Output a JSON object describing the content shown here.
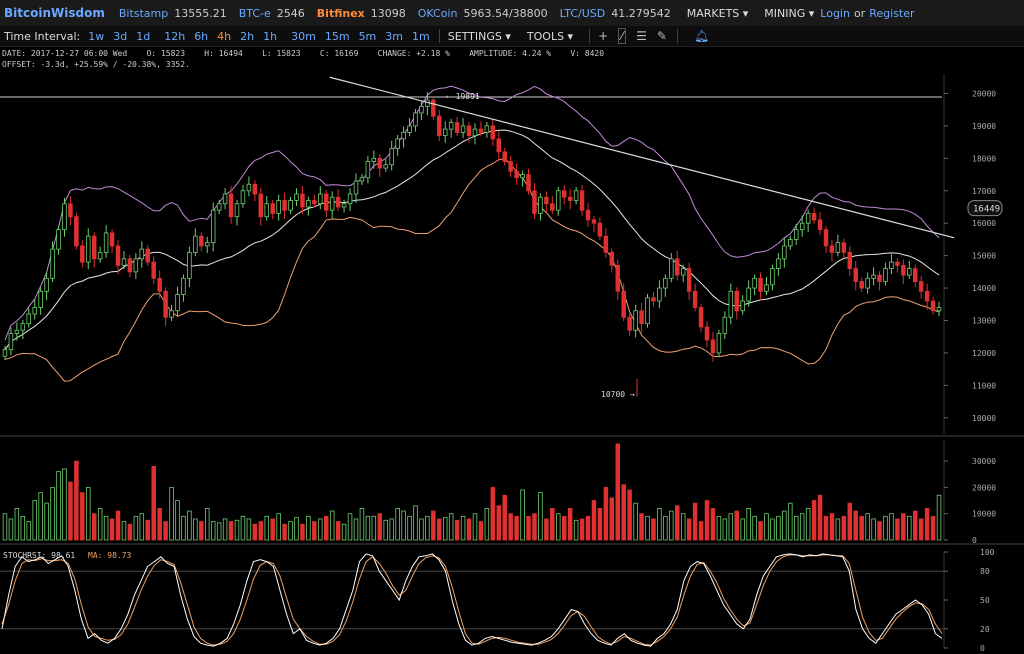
{
  "topbar": {
    "logo": "BitcoinWisdom",
    "tickers": [
      {
        "name": "Bitstamp",
        "value": "13555.21",
        "highlight": false
      },
      {
        "name": "BTC-e",
        "value": "2546",
        "highlight": false
      },
      {
        "name": "Bitfinex",
        "value": "13098",
        "highlight": true
      },
      {
        "name": "OKCoin",
        "value": "5963.54/38800",
        "highlight": false
      },
      {
        "name": "LTC/USD",
        "value": "41.279542",
        "highlight": false
      }
    ],
    "markets_label": "MARKETS ▾",
    "mining_label": "MINING ▾",
    "login_label": "Login",
    "or_label": "or",
    "register_label": "Register"
  },
  "toolbar": {
    "time_interval_label": "Time Interval:",
    "intervals": [
      "1w",
      "3d",
      "1d",
      "12h",
      "6h",
      "4h",
      "2h",
      "1h",
      "30m",
      "15m",
      "5m",
      "3m",
      "1m"
    ],
    "active_interval": "4h",
    "settings_label": "SETTINGS ▾",
    "tools_label": "TOOLS ▾"
  },
  "info": {
    "line1": "DATE: 2017-12-27 06:00 Wed    O: 15823    H: 16494    L: 15823    C: 16169    CHANGE: +2.18 %    AMPLITUDE: 4.24 %    V: 8420",
    "line2": "OFFSET: -3.3d, +25.59% / -20.38%, 3352."
  },
  "colors": {
    "up": "#6fcf6f",
    "down": "#e03030",
    "bb_outer": "#c48ad8",
    "bb_inner": "#f0a070",
    "bb_mid": "#e8e8e8",
    "trend": "#dddddd",
    "stoch_k": "#ffffff",
    "stoch_d": "#f0a060",
    "label_orange": "#f0a060"
  },
  "chart_data": [
    {
      "type": "candlestick",
      "pair": "BTC/USD",
      "exchange": "Bitfinex",
      "interval": "4h",
      "ylim": [
        9500,
        20600
      ],
      "y_ticks": [
        10000,
        11000,
        12000,
        13000,
        14000,
        15000,
        16000,
        17000,
        18000,
        19000,
        20000
      ],
      "current_price_label": "16449",
      "annotations": [
        {
          "text": "← 19891",
          "value": 19891
        },
        {
          "text": "10700 →",
          "value": 10700
        }
      ],
      "horizontal_line": 19891,
      "trendline": {
        "from": [
          0.32,
          20500
        ],
        "to": [
          0.93,
          15550
        ]
      },
      "closes": [
        12100,
        12600,
        12700,
        12900,
        13200,
        13400,
        13900,
        14300,
        15200,
        15800,
        16600,
        16200,
        15300,
        14800,
        15600,
        14900,
        15100,
        15700,
        15300,
        14700,
        14900,
        14500,
        14900,
        15200,
        14800,
        14300,
        13900,
        13100,
        13300,
        13800,
        14300,
        15100,
        15600,
        15300,
        15400,
        16400,
        16600,
        16900,
        16200,
        16600,
        17000,
        17200,
        16900,
        16200,
        16600,
        16300,
        16700,
        16400,
        16700,
        16900,
        16500,
        16700,
        16600,
        16900,
        16400,
        16800,
        16500,
        16600,
        16900,
        17300,
        17400,
        17900,
        18000,
        17700,
        17800,
        18300,
        18600,
        18800,
        19000,
        19400,
        19600,
        19800,
        19300,
        18700,
        18900,
        19100,
        18800,
        19000,
        18700,
        18900,
        18800,
        19000,
        18600,
        18200,
        17900,
        17600,
        17400,
        17500,
        17000,
        16300,
        16800,
        16600,
        16400,
        17000,
        16800,
        16700,
        17000,
        16400,
        16100,
        16000,
        15600,
        15100,
        14700,
        13900,
        13100,
        12700,
        13300,
        12900,
        13700,
        13600,
        14000,
        14300,
        14900,
        14400,
        14600,
        13900,
        13400,
        12800,
        12400,
        12000,
        12600,
        13100,
        13900,
        13300,
        13600,
        14000,
        14300,
        13900,
        14100,
        14600,
        14900,
        15300,
        15500,
        15800,
        16000,
        16300,
        16100,
        15800,
        15300,
        15100,
        15400,
        15100,
        14600,
        14200,
        14000,
        14300,
        14400,
        14200,
        14600,
        14800,
        14700,
        14400,
        14600,
        14200,
        13900,
        13600,
        13300,
        13400
      ]
    },
    {
      "type": "bar",
      "name": "volume",
      "ylim": [
        0,
        38000
      ],
      "y_ticks": [
        0,
        10000,
        20000,
        30000
      ],
      "values": [
        10000,
        8000,
        12000,
        9000,
        7000,
        15000,
        18000,
        14000,
        20000,
        26000,
        27000,
        22000,
        30000,
        18000,
        20000,
        10000,
        12000,
        9000,
        8000,
        11000,
        7000,
        6000,
        9000,
        10000,
        7500,
        28000,
        12000,
        7000,
        20000,
        15000,
        9000,
        11000,
        8000,
        7000,
        12000,
        7000,
        6500,
        8000,
        7000,
        7500,
        9000,
        8000,
        6000,
        7000,
        9000,
        8000,
        10000,
        6000,
        7000,
        8500,
        6000,
        9000,
        7000,
        8000,
        9000,
        11000,
        7000,
        6000,
        10000,
        8000,
        12000,
        9000,
        9000,
        10000,
        7500,
        8000,
        12000,
        11000,
        9000,
        13000,
        8000,
        9000,
        11000,
        8000,
        8500,
        10000,
        7500,
        9000,
        8000,
        10000,
        7000,
        12000,
        20000,
        13000,
        17000,
        10000,
        9000,
        19000,
        9000,
        10000,
        18000,
        8000,
        12000,
        10000,
        9000,
        12000,
        7500,
        8000,
        9000,
        15000,
        12000,
        20000,
        16000,
        36500,
        21000,
        19000,
        14000,
        10000,
        9000,
        8000,
        12000,
        9000,
        11000,
        13000,
        10000,
        8000,
        14000,
        7000,
        15000,
        12000,
        9000,
        8000,
        10000,
        11000,
        8000,
        12000,
        9000,
        7000,
        10000,
        8000,
        9000,
        11000,
        14000,
        9000,
        10000,
        12000,
        15000,
        17000,
        9000,
        10000,
        8000,
        9000,
        14000,
        11000,
        9000,
        10000,
        8000,
        7000,
        9000,
        10000,
        8000,
        10000,
        9000,
        11000,
        8000,
        12000,
        9000,
        17000,
        9000,
        8000
      ]
    },
    {
      "type": "line",
      "name": "stochrsi",
      "title": "STOCHRSI: 98.61",
      "ma_label": "MA: 98.73",
      "ylim": [
        0,
        100
      ],
      "y_ticks": [
        0,
        20,
        50,
        80,
        100
      ],
      "series": [
        {
          "name": "STOCHRSI",
          "values": [
            20,
            55,
            85,
            95,
            90,
            92,
            95,
            88,
            92,
            96,
            85,
            60,
            30,
            10,
            15,
            8,
            5,
            10,
            20,
            35,
            55,
            70,
            85,
            90,
            95,
            88,
            85,
            55,
            30,
            12,
            5,
            3,
            2,
            5,
            10,
            25,
            45,
            70,
            90,
            92,
            90,
            85,
            60,
            35,
            15,
            20,
            8,
            5,
            3,
            5,
            10,
            20,
            40,
            60,
            90,
            98,
            96,
            80,
            70,
            60,
            50,
            70,
            85,
            95,
            96,
            98,
            92,
            80,
            50,
            25,
            8,
            3,
            5,
            10,
            12,
            10,
            8,
            6,
            5,
            4,
            3,
            5,
            8,
            12,
            20,
            30,
            40,
            38,
            25,
            15,
            8,
            5,
            3,
            10,
            15,
            8,
            5,
            3,
            2,
            10,
            15,
            25,
            40,
            70,
            85,
            90,
            88,
            75,
            60,
            45,
            35,
            25,
            20,
            30,
            55,
            75,
            85,
            95,
            97,
            98,
            97,
            95,
            97,
            96,
            98,
            97,
            96,
            95,
            80,
            40,
            20,
            10,
            5,
            15,
            25,
            35,
            40,
            45,
            50,
            45,
            35,
            15,
            10
          ]
        },
        {
          "name": "MA",
          "values": [
            25,
            45,
            70,
            88,
            92,
            91,
            93,
            91,
            91,
            92,
            88,
            72,
            45,
            22,
            12,
            10,
            8,
            9,
            14,
            25,
            42,
            60,
            75,
            86,
            92,
            90,
            87,
            68,
            45,
            22,
            10,
            5,
            3,
            4,
            7,
            15,
            30,
            50,
            72,
            86,
            90,
            88,
            75,
            52,
            30,
            20,
            12,
            7,
            4,
            4,
            7,
            14,
            28,
            48,
            72,
            90,
            95,
            88,
            78,
            65,
            55,
            60,
            75,
            88,
            94,
            96,
            94,
            85,
            64,
            38,
            15,
            5,
            4,
            7,
            10,
            11,
            10,
            8,
            6,
            5,
            4,
            4,
            6,
            9,
            15,
            24,
            34,
            38,
            33,
            22,
            12,
            7,
            4,
            7,
            12,
            10,
            7,
            4,
            3,
            7,
            12,
            20,
            32,
            55,
            75,
            87,
            89,
            80,
            68,
            52,
            40,
            30,
            23,
            26,
            45,
            65,
            80,
            90,
            95,
            97,
            97,
            96,
            96,
            96,
            97,
            97,
            96,
            96,
            88,
            60,
            32,
            16,
            8,
            10,
            20,
            30,
            37,
            43,
            47,
            46,
            40,
            25,
            15
          ]
        }
      ]
    }
  ]
}
